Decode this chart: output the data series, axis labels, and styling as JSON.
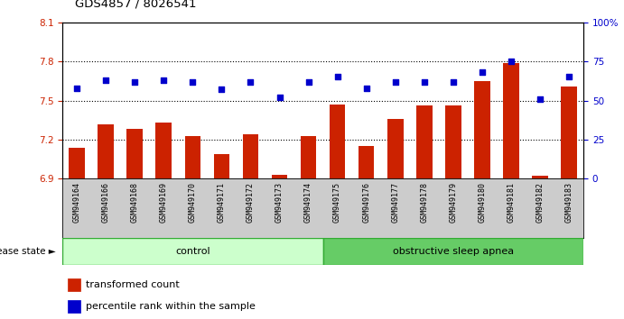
{
  "title": "GDS4857 / 8026541",
  "samples": [
    "GSM949164",
    "GSM949166",
    "GSM949168",
    "GSM949169",
    "GSM949170",
    "GSM949171",
    "GSM949172",
    "GSM949173",
    "GSM949174",
    "GSM949175",
    "GSM949176",
    "GSM949177",
    "GSM949178",
    "GSM949179",
    "GSM949180",
    "GSM949181",
    "GSM949182",
    "GSM949183"
  ],
  "bar_values": [
    7.14,
    7.32,
    7.28,
    7.33,
    7.23,
    7.09,
    7.24,
    6.93,
    7.23,
    7.47,
    7.15,
    7.36,
    7.46,
    7.46,
    7.65,
    7.79,
    6.92,
    7.61
  ],
  "blue_values": [
    58,
    63,
    62,
    63,
    62,
    57,
    62,
    52,
    62,
    65,
    58,
    62,
    62,
    62,
    68,
    75,
    51,
    65
  ],
  "ylim_left": [
    6.9,
    8.1
  ],
  "ylim_right": [
    0,
    100
  ],
  "yticks_left": [
    6.9,
    7.2,
    7.5,
    7.8,
    8.1
  ],
  "yticks_right": [
    0,
    25,
    50,
    75,
    100
  ],
  "bar_color": "#cc2200",
  "blue_color": "#0000cc",
  "control_count": 9,
  "control_label": "control",
  "disease_label": "obstructive sleep apnea",
  "legend_bar": "transformed count",
  "legend_blue": "percentile rank within the sample",
  "disease_state_label": "disease state",
  "control_bg": "#ccffcc",
  "disease_bg": "#66cc66",
  "tick_area_bg": "#cccccc",
  "fig_width": 6.91,
  "fig_height": 3.54
}
